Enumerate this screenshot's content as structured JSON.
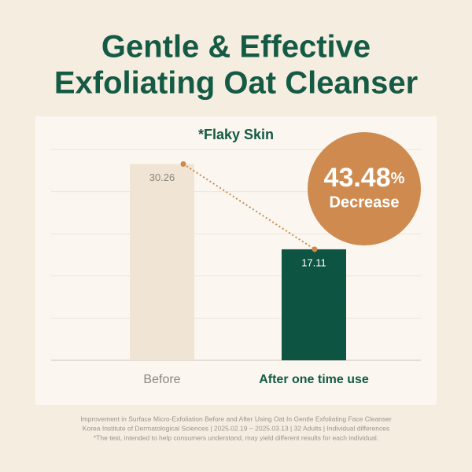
{
  "chart_data": {
    "type": "bar",
    "title": [
      "Gentle & Effective",
      "Exfoliating Oat Cleanser"
    ],
    "subtitle": "*Flaky Skin",
    "categories": [
      "Before",
      "After one time use"
    ],
    "series": [
      {
        "values": [
          30.26,
          17.11
        ],
        "colors": [
          "#f0e5d4",
          "#0e5443"
        ]
      }
    ],
    "connector_color": "#c98a4b",
    "ylim": [
      0,
      32.5
    ],
    "yticks": [
      0,
      6.5,
      13,
      19.5,
      26,
      32.5
    ],
    "grid": true,
    "tick_labels": false,
    "badge": {
      "number": "43.48",
      "unit": "%",
      "label": "Decrease",
      "color": "#cf8b4f"
    },
    "footnotes": [
      "Improvement in Surface Micro-Exfoliation Before and After Using Oat In Gentle Exfoliating Face Cleanser",
      "Korea Institute of Dermatological Sciences | 2025.02.19 ~ 2025.03.13 | 32 Adults | Individual differences",
      "*The test, intended to help consumers understand, may yield different results for each individual."
    ]
  }
}
